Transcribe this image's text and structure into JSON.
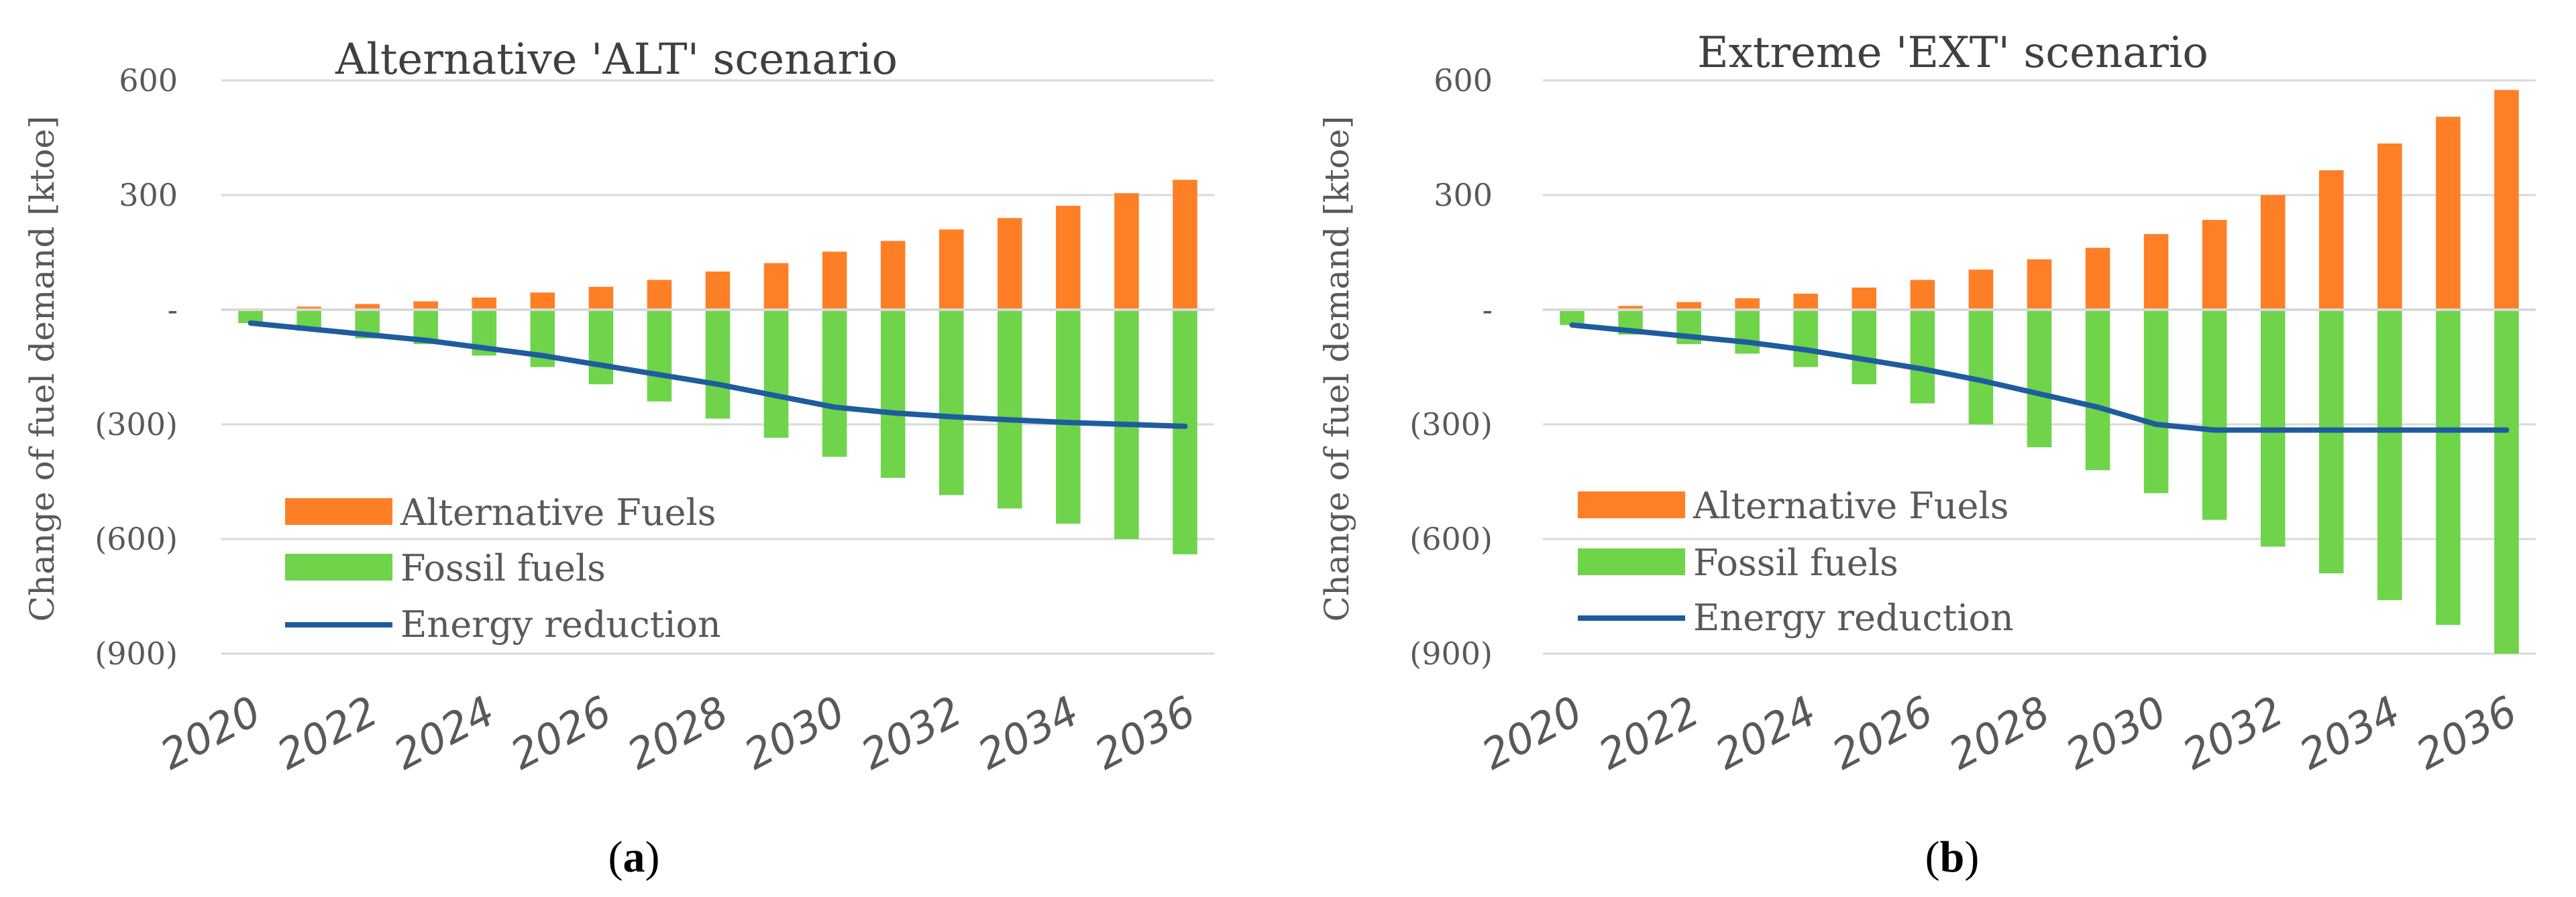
{
  "colors": {
    "alternative": "#FF7F27",
    "fossil": "#6FD44A",
    "energy": "#1F5C9E",
    "grid": "#D9D9D9",
    "axis": "#D9D9D9"
  },
  "chart_data": [
    {
      "type": "bar",
      "title": "Alternative 'ALT' scenario",
      "panel_label": "a",
      "ylabel": "Change of fuel demand [ktoe]",
      "ylim": [
        -900,
        600
      ],
      "yticks": [
        600,
        300,
        0,
        -300,
        -600,
        -900
      ],
      "ytick_labels": [
        "600",
        "300",
        "-",
        "(300)",
        "(600)",
        "(900)"
      ],
      "x": [
        2020,
        2021,
        2022,
        2023,
        2024,
        2025,
        2026,
        2027,
        2028,
        2029,
        2030,
        2031,
        2032,
        2033,
        2034,
        2035,
        2036
      ],
      "xtick_labels": [
        "2020",
        "2022",
        "2024",
        "2026",
        "2028",
        "2030",
        "2032",
        "2034",
        "2036"
      ],
      "legend": [
        "Alternative Fuels",
        "Fossil fuels",
        "Energy reduction"
      ],
      "series": [
        {
          "name": "Alternative Fuels",
          "kind": "bar",
          "values": [
            3,
            8,
            15,
            22,
            32,
            45,
            60,
            78,
            100,
            122,
            152,
            180,
            210,
            240,
            272,
            305,
            340
          ]
        },
        {
          "name": "Fossil fuels",
          "kind": "bar",
          "values": [
            -35,
            -55,
            -75,
            -90,
            -120,
            -150,
            -195,
            -240,
            -285,
            -335,
            -385,
            -440,
            -485,
            -520,
            -560,
            -600,
            -640
          ]
        },
        {
          "name": "Energy reduction",
          "kind": "line",
          "values": [
            -35,
            -50,
            -65,
            -80,
            -100,
            -120,
            -145,
            -170,
            -195,
            -225,
            -255,
            -270,
            -280,
            -288,
            -295,
            -300,
            -305
          ]
        }
      ]
    },
    {
      "type": "bar",
      "title": "Extreme 'EXT' scenario",
      "panel_label": "b",
      "ylabel": "Change of fuel demand [ktoe]",
      "ylim": [
        -900,
        600
      ],
      "yticks": [
        600,
        300,
        0,
        -300,
        -600,
        -900
      ],
      "ytick_labels": [
        "600",
        "300",
        "-",
        "(300)",
        "(600)",
        "(900)"
      ],
      "x": [
        2020,
        2021,
        2022,
        2023,
        2024,
        2025,
        2026,
        2027,
        2028,
        2029,
        2030,
        2031,
        2032,
        2033,
        2034,
        2035,
        2036
      ],
      "xtick_labels": [
        "2020",
        "2022",
        "2024",
        "2026",
        "2028",
        "2030",
        "2032",
        "2034",
        "2036"
      ],
      "legend": [
        "Alternative Fuels",
        "Fossil fuels",
        "Energy reduction"
      ],
      "series": [
        {
          "name": "Alternative Fuels",
          "kind": "bar",
          "values": [
            3,
            10,
            20,
            30,
            42,
            58,
            78,
            105,
            132,
            162,
            198,
            235,
            300,
            365,
            435,
            505,
            575
          ]
        },
        {
          "name": "Fossil fuels",
          "kind": "bar",
          "values": [
            -40,
            -65,
            -90,
            -115,
            -150,
            -195,
            -245,
            -300,
            -360,
            -420,
            -480,
            -550,
            -620,
            -690,
            -760,
            -825,
            -900
          ]
        },
        {
          "name": "Energy reduction",
          "kind": "line",
          "values": [
            -40,
            -55,
            -70,
            -85,
            -105,
            -130,
            -155,
            -185,
            -220,
            -255,
            -300,
            -315,
            -315,
            -315,
            -315,
            -315,
            -315
          ]
        }
      ]
    }
  ]
}
